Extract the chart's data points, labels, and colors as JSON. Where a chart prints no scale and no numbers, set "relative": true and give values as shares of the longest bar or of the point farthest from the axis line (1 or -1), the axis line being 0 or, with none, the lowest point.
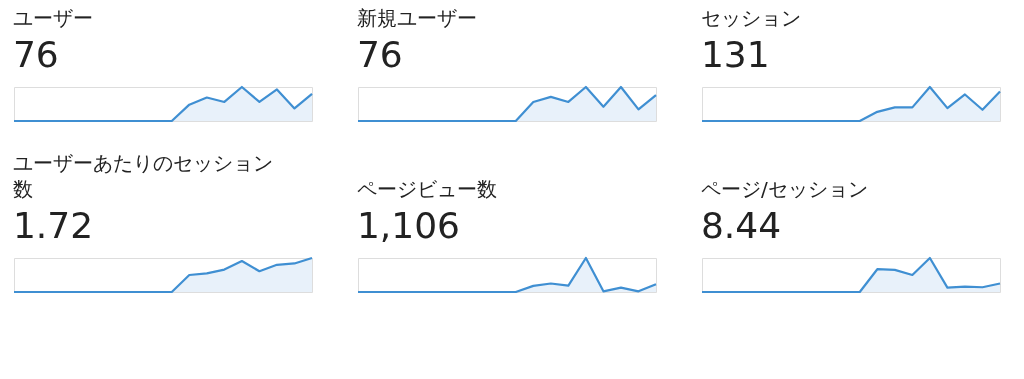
{
  "chart_data": [
    {
      "type": "area",
      "title": "ユーザー",
      "annotations": [
        "76"
      ],
      "relative": true,
      "categories": [
        null,
        null,
        null,
        null,
        null,
        null,
        null,
        null,
        null,
        null,
        null,
        null,
        null,
        null,
        null,
        null,
        null,
        null
      ],
      "series": [
        {
          "color": "#3f8fd2",
          "values": [
            0,
            0,
            0,
            0,
            0,
            0,
            0,
            0,
            0,
            0,
            0.48,
            0.69,
            0.56,
            1,
            0.56,
            0.93,
            0.37,
            0.8
          ]
        }
      ]
    },
    {
      "type": "area",
      "title": "新規ユーザー",
      "annotations": [
        "76"
      ],
      "relative": true,
      "categories": [
        null,
        null,
        null,
        null,
        null,
        null,
        null,
        null,
        null,
        null,
        null,
        null,
        null,
        null,
        null,
        null,
        null,
        null
      ],
      "series": [
        {
          "color": "#3f8fd2",
          "values": [
            0,
            0,
            0,
            0,
            0,
            0,
            0,
            0,
            0,
            0,
            0.56,
            0.71,
            0.56,
            1,
            0.42,
            1,
            0.34,
            0.76
          ]
        }
      ]
    },
    {
      "type": "area",
      "title": "セッション",
      "annotations": [
        "131"
      ],
      "relative": true,
      "categories": [
        null,
        null,
        null,
        null,
        null,
        null,
        null,
        null,
        null,
        null,
        null,
        null,
        null,
        null,
        null,
        null,
        null,
        null
      ],
      "series": [
        {
          "color": "#3f8fd2",
          "values": [
            0,
            0,
            0,
            0,
            0,
            0,
            0,
            0,
            0,
            0,
            0.27,
            0.4,
            0.4,
            1,
            0.38,
            0.78,
            0.33,
            0.87
          ]
        }
      ]
    },
    {
      "type": "area",
      "title": "ユーザーあたりのセッション数",
      "annotations": [
        "1.72"
      ],
      "relative": true,
      "categories": [
        null,
        null,
        null,
        null,
        null,
        null,
        null,
        null,
        null,
        null,
        null,
        null,
        null,
        null,
        null,
        null,
        null,
        null
      ],
      "series": [
        {
          "color": "#3f8fd2",
          "values": [
            0,
            0,
            0,
            0,
            0,
            0,
            0,
            0,
            0,
            0,
            0.5,
            0.55,
            0.66,
            0.91,
            0.61,
            0.8,
            0.84,
            1
          ]
        }
      ]
    },
    {
      "type": "area",
      "title": "ページビュー数",
      "annotations": [
        "1,106"
      ],
      "relative": true,
      "categories": [
        null,
        null,
        null,
        null,
        null,
        null,
        null,
        null,
        null,
        null,
        null,
        null,
        null,
        null,
        null,
        null,
        null,
        null
      ],
      "series": [
        {
          "color": "#3f8fd2",
          "values": [
            0,
            0,
            0,
            0,
            0,
            0,
            0,
            0,
            0,
            0,
            0.18,
            0.25,
            0.19,
            1,
            0.02,
            0.13,
            0.02,
            0.23
          ]
        }
      ]
    },
    {
      "type": "area",
      "title": "ページ/セッション",
      "annotations": [
        "8.44"
      ],
      "relative": true,
      "categories": [
        null,
        null,
        null,
        null,
        null,
        null,
        null,
        null,
        null,
        null,
        null,
        null,
        null,
        null,
        null,
        null,
        null,
        null
      ],
      "series": [
        {
          "color": "#3f8fd2",
          "values": [
            0,
            0,
            0,
            0,
            0,
            0,
            0,
            0,
            0,
            0,
            0.67,
            0.65,
            0.5,
            1,
            0.13,
            0.16,
            0.14,
            0.25
          ]
        }
      ]
    }
  ]
}
